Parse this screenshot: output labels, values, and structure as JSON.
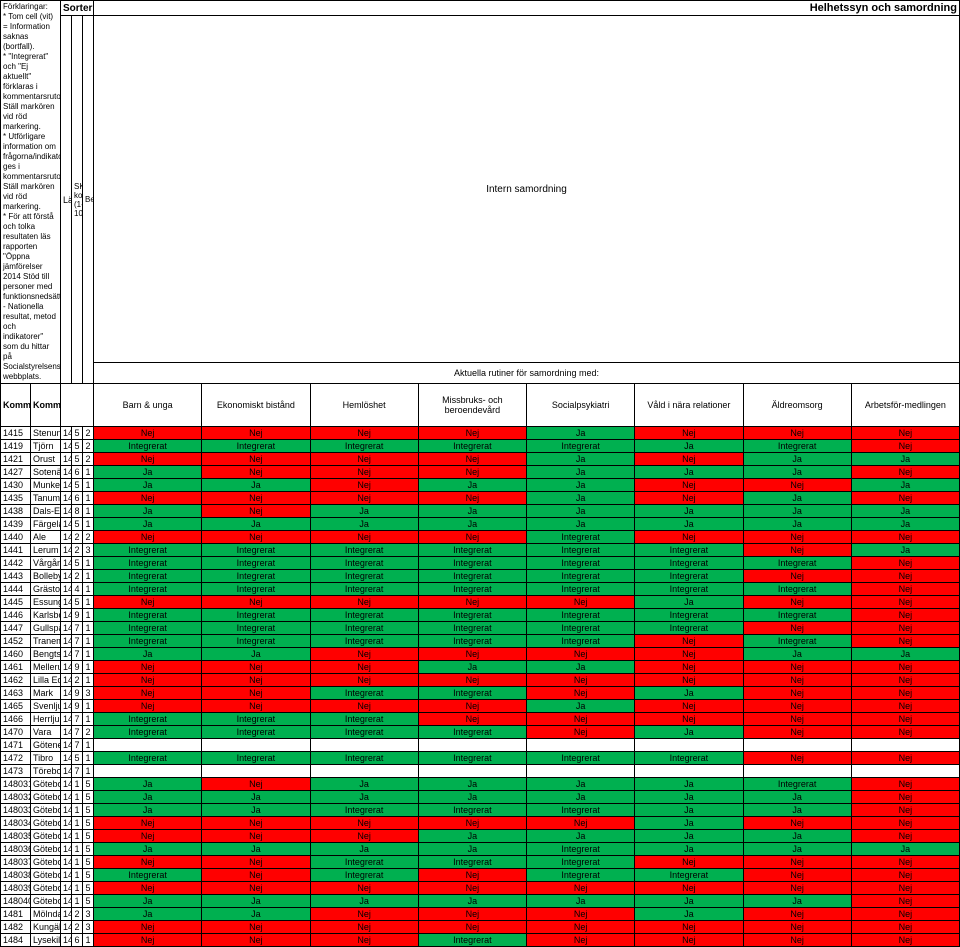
{
  "colors": {
    "green": "#00b050",
    "red": "#ff0000",
    "white": "#ffffff"
  },
  "header": {
    "top_left_title": "Förklaringar:",
    "info_lines": [
      "* Tom cell (vit) = Information saknas (bortfall).",
      "* \"Integrerat\" och \"Ej aktuellt\" förklaras i kommentarsrutor. Ställ markören vid röd markering.",
      "* Utförligare information om frågorna/indikatorerna ges i kommentarsrutor. Ställ markören vid röd markering.",
      "* För att förstå och tolka resultaten läs rapporten \"Öppna jämförelser 2014 Stöd till personer med funktionsnedsättning - Nationella resultat, metod och indikatorer\" som du hittar på Socialstyrelsens webbplats."
    ],
    "sortering": "Sortering",
    "helhets": "Helhetssyn och samordning",
    "intern": "Intern samordning",
    "aktuella": "Aktuella rutiner för samordning med:",
    "lan": "Län",
    "skl": "SKL:s kommuntyp (1-10)",
    "bef": "Befolkningsgrupp",
    "kommunkod": "Kommunkod",
    "kommun": "Kommun/stadsdel",
    "cols": [
      "Barn & unga",
      "Ekonomiskt bistånd",
      "Hemlöshet",
      "Missbruks- och beroendevård",
      "Socialpsykiatri",
      "Våld i nära relationer",
      "Äldreomsorg",
      "Arbetsför-medlingen"
    ]
  },
  "rows": [
    {
      "kod": "1415",
      "kommun": "Stenungsund",
      "lan": 14,
      "skl": 5,
      "bef": 2,
      "v": [
        "Nej",
        "Nej",
        "Nej",
        "Nej",
        "Ja",
        "Nej",
        "Nej",
        "Nej"
      ]
    },
    {
      "kod": "1419",
      "kommun": "Tjörn",
      "lan": 14,
      "skl": 5,
      "bef": 2,
      "v": [
        "Integrerat",
        "Integrerat",
        "Integrerat",
        "Integrerat",
        "Integrerat",
        "Ja",
        "Integrerat",
        "Nej"
      ]
    },
    {
      "kod": "1421",
      "kommun": "Orust",
      "lan": 14,
      "skl": 5,
      "bef": 2,
      "v": [
        "Nej",
        "Nej",
        "Nej",
        "Nej",
        "Ja",
        "Nej",
        "Ja",
        "Ja"
      ]
    },
    {
      "kod": "1427",
      "kommun": "Sotenäs",
      "lan": 14,
      "skl": 6,
      "bef": 1,
      "v": [
        "Ja",
        "Nej",
        "Nej",
        "Nej",
        "Ja",
        "Ja",
        "Ja",
        "Nej"
      ]
    },
    {
      "kod": "1430",
      "kommun": "Munkedal",
      "lan": 14,
      "skl": 5,
      "bef": 1,
      "v": [
        "Ja",
        "Ja",
        "Nej",
        "Ja",
        "Ja",
        "Nej",
        "Nej",
        "Ja"
      ]
    },
    {
      "kod": "1435",
      "kommun": "Tanum",
      "lan": 14,
      "skl": 6,
      "bef": 1,
      "v": [
        "Nej",
        "Nej",
        "Nej",
        "Nej",
        "Ja",
        "Nej",
        "Ja",
        "Nej"
      ]
    },
    {
      "kod": "1438",
      "kommun": "Dals-Ed",
      "lan": 14,
      "skl": 8,
      "bef": 1,
      "v": [
        "Ja",
        "Nej",
        "Ja",
        "Ja",
        "Ja",
        "Ja",
        "Ja",
        "Ja"
      ]
    },
    {
      "kod": "1439",
      "kommun": "Färgelanda",
      "lan": 14,
      "skl": 5,
      "bef": 1,
      "v": [
        "Ja",
        "Ja",
        "Ja",
        "Ja",
        "Ja",
        "Ja",
        "Ja",
        "Ja"
      ]
    },
    {
      "kod": "1440",
      "kommun": "Ale",
      "lan": 14,
      "skl": 2,
      "bef": 2,
      "v": [
        "Nej",
        "Nej",
        "Nej",
        "Nej",
        "Integrerat",
        "Nej",
        "Nej",
        "Nej"
      ]
    },
    {
      "kod": "1441",
      "kommun": "Lerum",
      "lan": 14,
      "skl": 2,
      "bef": 3,
      "v": [
        "Integrerat",
        "Integrerat",
        "Integrerat",
        "Integrerat",
        "Integrerat",
        "Integrerat",
        "Nej",
        "Ja"
      ]
    },
    {
      "kod": "1442",
      "kommun": "Vårgårda",
      "lan": 14,
      "skl": 5,
      "bef": 1,
      "v": [
        "Integrerat",
        "Integrerat",
        "Integrerat",
        "Integrerat",
        "Integrerat",
        "Integrerat",
        "Integrerat",
        "Nej"
      ]
    },
    {
      "kod": "1443",
      "kommun": "Bollebygd",
      "lan": 14,
      "skl": 2,
      "bef": 1,
      "v": [
        "Integrerat",
        "Integrerat",
        "Integrerat",
        "Integrerat",
        "Integrerat",
        "Integrerat",
        "Nej",
        "Nej"
      ]
    },
    {
      "kod": "1444",
      "kommun": "Grästorp",
      "lan": 14,
      "skl": 4,
      "bef": 1,
      "v": [
        "Integrerat",
        "Integrerat",
        "Integrerat",
        "Integrerat",
        "Integrerat",
        "Integrerat",
        "Integrerat",
        "Nej"
      ]
    },
    {
      "kod": "1445",
      "kommun": "Essunga",
      "lan": 14,
      "skl": 5,
      "bef": 1,
      "v": [
        "Nej",
        "Nej",
        "Nej",
        "Nej",
        "Nej",
        "Ja",
        "Nej",
        "Nej"
      ]
    },
    {
      "kod": "1446",
      "kommun": "Karlsborg",
      "lan": 14,
      "skl": 9,
      "bef": 1,
      "v": [
        "Integrerat",
        "Integrerat",
        "Integrerat",
        "Integrerat",
        "Integrerat",
        "Integrerat",
        "Integrerat",
        "Nej"
      ]
    },
    {
      "kod": "1447",
      "kommun": "Gullspång",
      "lan": 14,
      "skl": 7,
      "bef": 1,
      "v": [
        "Integrerat",
        "Integrerat",
        "Integrerat",
        "Integrerat",
        "Integrerat",
        "Integrerat",
        "Nej",
        "Nej"
      ]
    },
    {
      "kod": "1452",
      "kommun": "Tranemo",
      "lan": 14,
      "skl": 7,
      "bef": 1,
      "v": [
        "Integrerat",
        "Integrerat",
        "Integrerat",
        "Integrerat",
        "Integrerat",
        "Nej",
        "Integrerat",
        "Nej"
      ]
    },
    {
      "kod": "1460",
      "kommun": "Bengtsfors",
      "lan": 14,
      "skl": 7,
      "bef": 1,
      "v": [
        "Ja",
        "Ja",
        "Nej",
        "Nej",
        "Nej",
        "Nej",
        "Ja",
        "Ja"
      ]
    },
    {
      "kod": "1461",
      "kommun": "Mellerud",
      "lan": 14,
      "skl": 9,
      "bef": 1,
      "v": [
        "Nej",
        "Nej",
        "Nej",
        "Ja",
        "Ja",
        "Nej",
        "Nej",
        "Nej"
      ]
    },
    {
      "kod": "1462",
      "kommun": "Lilla Edet",
      "lan": 14,
      "skl": 2,
      "bef": 1,
      "v": [
        "Nej",
        "Nej",
        "Nej",
        "Nej",
        "Nej",
        "Nej",
        "Nej",
        "Nej"
      ]
    },
    {
      "kod": "1463",
      "kommun": "Mark",
      "lan": 14,
      "skl": 9,
      "bef": 3,
      "v": [
        "Nej",
        "Nej",
        "Integrerat",
        "Integrerat",
        "Nej",
        "Ja",
        "Nej",
        "Nej"
      ]
    },
    {
      "kod": "1465",
      "kommun": "Svenljunga",
      "lan": 14,
      "skl": 9,
      "bef": 1,
      "v": [
        "Nej",
        "Nej",
        "Nej",
        "Nej",
        "Ja",
        "Nej",
        "Nej",
        "Nej"
      ]
    },
    {
      "kod": "1466",
      "kommun": "Herrljunga",
      "lan": 14,
      "skl": 7,
      "bef": 1,
      "v": [
        "Integrerat",
        "Integrerat",
        "Integrerat",
        "Nej",
        "Nej",
        "Nej",
        "Nej",
        "Nej"
      ]
    },
    {
      "kod": "1470",
      "kommun": "Vara",
      "lan": 14,
      "skl": 7,
      "bef": 2,
      "v": [
        "Integrerat",
        "Integrerat",
        "Integrerat",
        "Integrerat",
        "Nej",
        "Ja",
        "Nej",
        "Nej"
      ]
    },
    {
      "kod": "1471",
      "kommun": "Götene",
      "lan": 14,
      "skl": 7,
      "bef": 1,
      "v": [
        "",
        "",
        "",
        "",
        "",
        "",
        "",
        ""
      ]
    },
    {
      "kod": "1472",
      "kommun": "Tibro",
      "lan": 14,
      "skl": 5,
      "bef": 1,
      "v": [
        "Integrerat",
        "Integrerat",
        "Integrerat",
        "Integrerat",
        "Integrerat",
        "Integrerat",
        "Nej",
        "Nej"
      ]
    },
    {
      "kod": "1473",
      "kommun": "Töreboda",
      "lan": 14,
      "skl": 7,
      "bef": 1,
      "v": [
        "",
        "",
        "",
        "",
        "",
        "",
        "",
        ""
      ]
    },
    {
      "kod": "148031",
      "kommun": "Göteborg, Angered",
      "lan": 14,
      "skl": 1,
      "bef": 5,
      "v": [
        "Ja",
        "Nej",
        "Ja",
        "Ja",
        "Ja",
        "Ja",
        "Integrerat",
        "Nej"
      ]
    },
    {
      "kod": "148032",
      "kommun": "Göteborg, Östra Göteborg",
      "lan": 14,
      "skl": 1,
      "bef": 5,
      "v": [
        "Ja",
        "Ja",
        "Ja",
        "Ja",
        "Ja",
        "Ja",
        "Ja",
        "Nej"
      ]
    },
    {
      "kod": "148033",
      "kommun": "Göteborg, Örgryte-Härlanda",
      "lan": 14,
      "skl": 1,
      "bef": 5,
      "v": [
        "Ja",
        "Ja",
        "Integrerat",
        "Integrerat",
        "Integrerat",
        "Ja",
        "Ja",
        "Nej"
      ]
    },
    {
      "kod": "148034",
      "kommun": "Göteborg, Centrum",
      "lan": 14,
      "skl": 1,
      "bef": 5,
      "v": [
        "Nej",
        "Nej",
        "Nej",
        "Nej",
        "Nej",
        "Ja",
        "Nej",
        "Nej"
      ]
    },
    {
      "kod": "148035",
      "kommun": "Göteborg, Majorna-Linné",
      "lan": 14,
      "skl": 1,
      "bef": 5,
      "v": [
        "Nej",
        "Nej",
        "Nej",
        "Ja",
        "Ja",
        "Ja",
        "Ja",
        "Nej"
      ]
    },
    {
      "kod": "148036",
      "kommun": "Göteborg, Askim-Frölunda-Högsbo",
      "lan": 14,
      "skl": 1,
      "bef": 5,
      "v": [
        "Ja",
        "Ja",
        "Ja",
        "Ja",
        "Integrerat",
        "Ja",
        "Ja",
        "Ja"
      ]
    },
    {
      "kod": "148037",
      "kommun": "Göteborg, Västra Göteborg",
      "lan": 14,
      "skl": 1,
      "bef": 5,
      "v": [
        "Nej",
        "Nej",
        "Integrerat",
        "Integrerat",
        "Integrerat",
        "Nej",
        "Nej",
        "Nej"
      ]
    },
    {
      "kod": "148038",
      "kommun": "Göteborg, Västra Hisingen",
      "lan": 14,
      "skl": 1,
      "bef": 5,
      "v": [
        "Integrerat",
        "Nej",
        "Integrerat",
        "Nej",
        "Integrerat",
        "Integrerat",
        "Nej",
        "Nej"
      ]
    },
    {
      "kod": "148039",
      "kommun": "Göteborg, Lundby",
      "lan": 14,
      "skl": 1,
      "bef": 5,
      "v": [
        "Nej",
        "Nej",
        "Nej",
        "Nej",
        "Nej",
        "Nej",
        "Nej",
        "Nej"
      ]
    },
    {
      "kod": "148040",
      "kommun": "Göteborg, Norra Hisingen",
      "lan": 14,
      "skl": 1,
      "bef": 5,
      "v": [
        "Ja",
        "Ja",
        "Ja",
        "Ja",
        "Ja",
        "Ja",
        "Ja",
        "Nej"
      ]
    },
    {
      "kod": "1481",
      "kommun": "Mölndal",
      "lan": 14,
      "skl": 2,
      "bef": 3,
      "v": [
        "Ja",
        "Ja",
        "Nej",
        "Nej",
        "Nej",
        "Ja",
        "Nej",
        "Nej"
      ]
    },
    {
      "kod": "1482",
      "kommun": "Kungälv",
      "lan": 14,
      "skl": 2,
      "bef": 3,
      "v": [
        "Nej",
        "Nej",
        "Nej",
        "Nej",
        "Nej",
        "Nej",
        "Nej",
        "Nej"
      ]
    },
    {
      "kod": "1484",
      "kommun": "Lysekil",
      "lan": 14,
      "skl": 6,
      "bef": 1,
      "v": [
        "Nej",
        "Nej",
        "Nej",
        "Integrerat",
        "Nej",
        "Nej",
        "Nej",
        "Nej"
      ]
    }
  ]
}
